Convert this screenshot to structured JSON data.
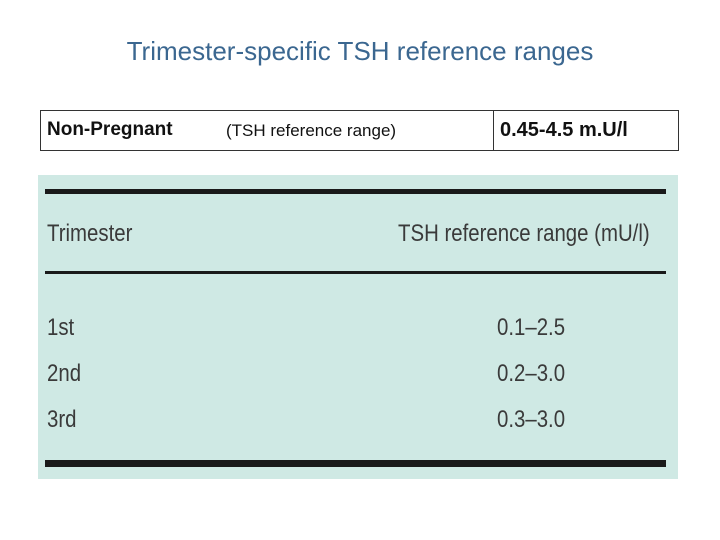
{
  "title": "Trimester-specific TSH reference ranges",
  "summary": {
    "label": "Non-Pregnant",
    "note": "(TSH reference range)",
    "value": "0.45-4.5 m.U/l"
  },
  "table": {
    "columns": [
      "Trimester",
      "TSH reference range (mU/l)"
    ],
    "rows": [
      [
        "1st",
        "0.1–2.5"
      ],
      [
        "2nd",
        "0.2–3.0"
      ],
      [
        "3rd",
        "0.3–3.0"
      ]
    ]
  }
}
